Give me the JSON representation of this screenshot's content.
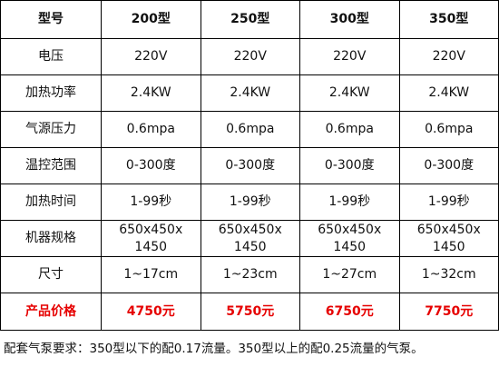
{
  "table": {
    "header": [
      "型号",
      "200型",
      "250型",
      "300型",
      "350型"
    ],
    "rows": [
      [
        "电压",
        "220V",
        "220V",
        "220V",
        "220V"
      ],
      [
        "加热功率",
        "2.4KW",
        "2.4KW",
        "2.4KW",
        "2.4KW"
      ],
      [
        "气源压力",
        "0.6mpa",
        "0.6mpa",
        "0.6mpa",
        "0.6mpa"
      ],
      [
        "温控范围",
        "0-300度",
        "0-300度",
        "0-300度",
        "0-300度"
      ],
      [
        "加热时间",
        "1-99秒",
        "1-99秒",
        "1-99秒",
        "1-99秒"
      ],
      [
        "机器规格",
        [
          "650x450x",
          "1450"
        ],
        [
          "650x450x",
          "1450"
        ],
        [
          "650x450x",
          "1450"
        ],
        [
          "650x450x",
          "1450"
        ]
      ],
      [
        "尺寸",
        "1~17cm",
        "1~23cm",
        "1~27cm",
        "1~32cm"
      ],
      [
        "产品价格",
        "4750元",
        "5750元",
        "6750元",
        "7750元"
      ]
    ]
  },
  "note": "配套气泵要求：350型以下的配0.17流量。350型以上的配0.25流量的气泵。"
}
